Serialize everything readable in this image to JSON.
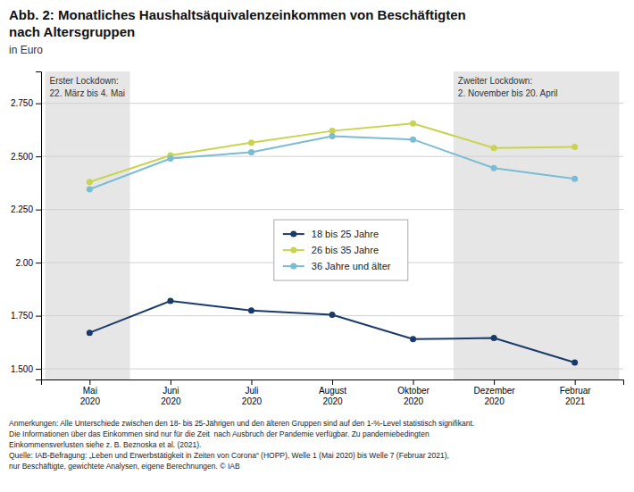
{
  "chart_data": {
    "type": "line",
    "title": [
      "Abb. 2: Monatliches Haushaltsäquivalenzeinkommen von Beschäftigten",
      "nach Altersgruppen"
    ],
    "subtitle": "in Euro",
    "categories": [
      "Mai\n2020",
      "Juni\n2020",
      "Juli\n2020",
      "August\n2020",
      "Oktober\n2020",
      "Dezember\n2020",
      "Februar\n2021"
    ],
    "series": [
      {
        "name": "18 bis 25 Jahre",
        "color": "#1a3a6b",
        "marker": "circle",
        "values": [
          1.67,
          1.82,
          1.775,
          1.755,
          1.64,
          1.645,
          1.53
        ]
      },
      {
        "name": "26 bis 35 Jahre",
        "color": "#c8d44e",
        "marker": "circle",
        "values": [
          2.38,
          2.505,
          2.565,
          2.62,
          2.655,
          2.54,
          2.545
        ]
      },
      {
        "name": "36 Jahre und älter",
        "color": "#7bbcd5",
        "marker": "circle",
        "values": [
          2.345,
          2.49,
          2.52,
          2.595,
          2.58,
          2.445,
          2.395
        ]
      }
    ],
    "ylim": [
      1.45,
      2.9
    ],
    "yticks": [
      {
        "value": 1.5,
        "label": "1.500"
      },
      {
        "value": 1.75,
        "label": "1.750"
      },
      {
        "value": 2.0,
        "label": "2.00"
      },
      {
        "value": 2.25,
        "label": "2.250"
      },
      {
        "value": 2.5,
        "label": "2.500"
      },
      {
        "value": 2.75,
        "label": "2.750"
      }
    ],
    "grid": true,
    "legend": "center",
    "shaded_regions": [
      {
        "x": [
          -0.55,
          0.5
        ],
        "text": [
          "Erster Lockdown:",
          "22. März bis 4. Mai"
        ]
      },
      {
        "x": [
          4.5,
          6.55
        ],
        "text": [
          "Zweiter Lockdown:",
          "2. November bis 20. April"
        ]
      }
    ],
    "annotations": [
      "Anmerkungen: Alle Unterschiede zwischen den 18- bis 25-Jährigen und den älteren Gruppen sind auf den 1-%-Level statistisch signifikant.",
      "Die Informationen über das Einkommen sind nur für die Zeit  nach Ausbruch der Pandemie verfügbar. Zu pandemiebedingten",
      "Einkommensverlusten siehe z. B. Beznoska et al. (2021).",
      "Quelle: IAB-Befragung: „Leben und Erwerbstätigkeit in Zeiten von Corona“ (HOPP), Welle 1 (Mai 2020) bis Welle 7 (Februar 2021),",
      "nur Beschäftigte, gewichtete Analysen, eigene Berechnungen. © IAB"
    ]
  }
}
